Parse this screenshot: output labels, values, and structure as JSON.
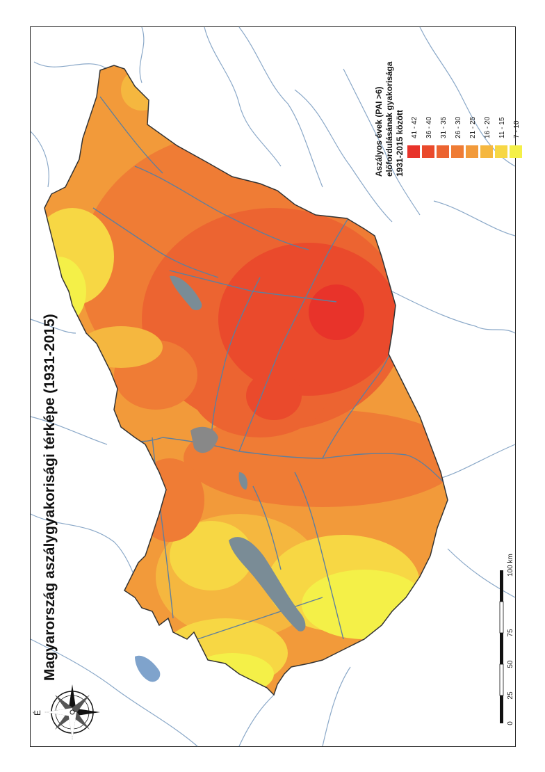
{
  "map": {
    "title": "Magyarország aszálygyakorisági térképe (1931-2015)",
    "north_label": "É"
  },
  "legend": {
    "title_lines": [
      "Aszályos évek (PAI >6)",
      "előfordulásának gyakorisága",
      "1931-2015 között"
    ],
    "classes": [
      {
        "label": "41 - 42",
        "color": "#e8332a"
      },
      {
        "label": "36 - 40",
        "color": "#ea4a2c"
      },
      {
        "label": "31 - 35",
        "color": "#ec6431"
      },
      {
        "label": "26 - 30",
        "color": "#ef7c35"
      },
      {
        "label": "21 - 25",
        "color": "#f29a3a"
      },
      {
        "label": "16 - 20",
        "color": "#f5b73f"
      },
      {
        "label": "11 - 15",
        "color": "#f7d744"
      },
      {
        "label": "7 - 10",
        "color": "#f4f048"
      }
    ]
  },
  "scalebar": {
    "ticks": [
      "0",
      "25",
      "50",
      "75",
      "100 km"
    ]
  },
  "colors": {
    "river": "#8aa8c8",
    "lake": "#7a8c96",
    "border": "#333333"
  }
}
